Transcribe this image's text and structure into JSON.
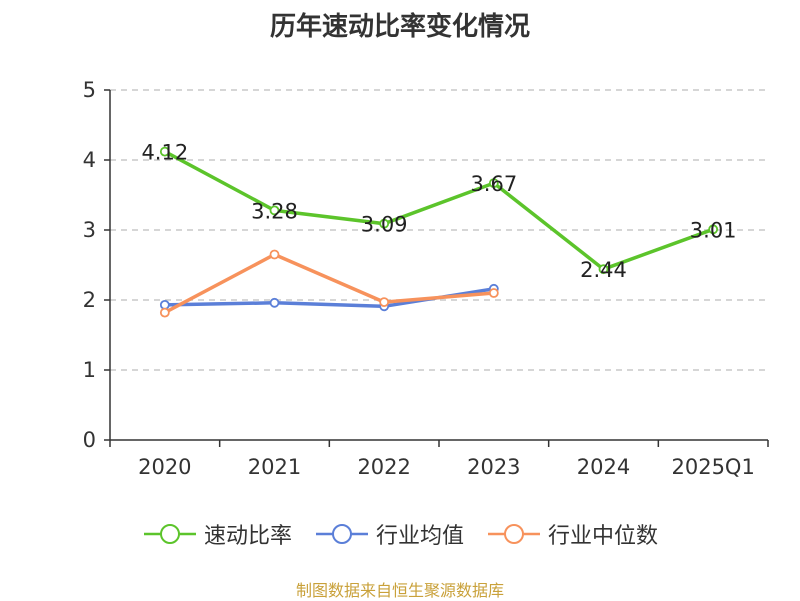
{
  "colors": {
    "series_1": "#5cc42b",
    "series_2": "#5b7fd8",
    "series_3": "#f7925c",
    "grid": "#c8c8c8",
    "axis": "#333333",
    "source": "#c9a13a"
  },
  "source_note": "制图数据来自恒生聚源数据库",
  "chart_data": {
    "type": "line",
    "title": "历年速动比率变化情况",
    "xlabel": "",
    "ylabel": "",
    "categories": [
      "2020",
      "2021",
      "2022",
      "2023",
      "2024",
      "2025Q1"
    ],
    "ylim": [
      0,
      5
    ],
    "yticks": [
      0,
      1,
      2,
      3,
      4,
      5
    ],
    "grid": true,
    "legend_position": "bottom",
    "series": [
      {
        "name": "速动比率",
        "color": "#5cc42b",
        "values": [
          4.12,
          3.28,
          3.09,
          3.67,
          2.44,
          3.01
        ],
        "labels": [
          "4.12",
          "3.28",
          "3.09",
          "3.67",
          "2.44",
          "3.01"
        ]
      },
      {
        "name": "行业均值",
        "color": "#5b7fd8",
        "values": [
          1.93,
          1.96,
          1.91,
          2.16,
          null,
          null
        ]
      },
      {
        "name": "行业中位数",
        "color": "#f7925c",
        "values": [
          1.82,
          2.65,
          1.97,
          2.1,
          null,
          null
        ]
      }
    ]
  }
}
